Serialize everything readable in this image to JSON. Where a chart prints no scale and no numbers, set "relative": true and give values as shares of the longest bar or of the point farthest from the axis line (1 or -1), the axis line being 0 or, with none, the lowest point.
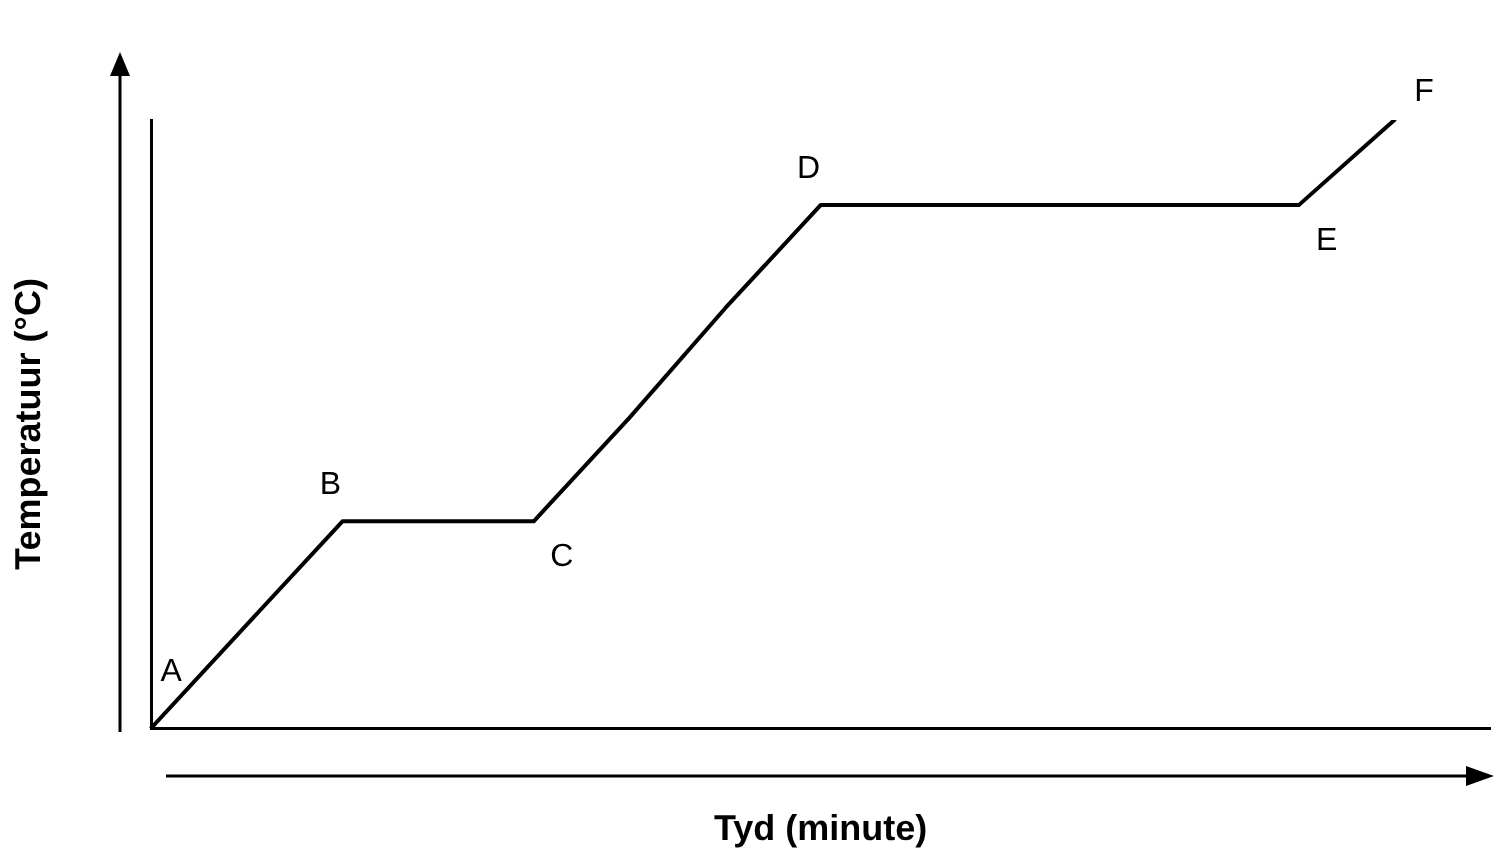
{
  "chart_data": {
    "type": "line",
    "relative": true,
    "xlabel": "Tyd (minute)",
    "ylabel": "Temperatuur (°C)",
    "categories": [
      null,
      null,
      null,
      null,
      null,
      null,
      null,
      null,
      null,
      null,
      null,
      null,
      null,
      null,
      null
    ],
    "series": [
      {
        "color": "#000000",
        "values": [
          0,
          0.17,
          0.34,
          0.34,
          0.34,
          0.51,
          0.69,
          0.86,
          0.86,
          0.86,
          0.86,
          0.86,
          0.86,
          1,
          null
        ]
      }
    ],
    "annotations": [
      "A",
      "B",
      "C",
      "D",
      "E",
      "F"
    ],
    "grid": false,
    "legend": false,
    "line_style": "solid"
  }
}
